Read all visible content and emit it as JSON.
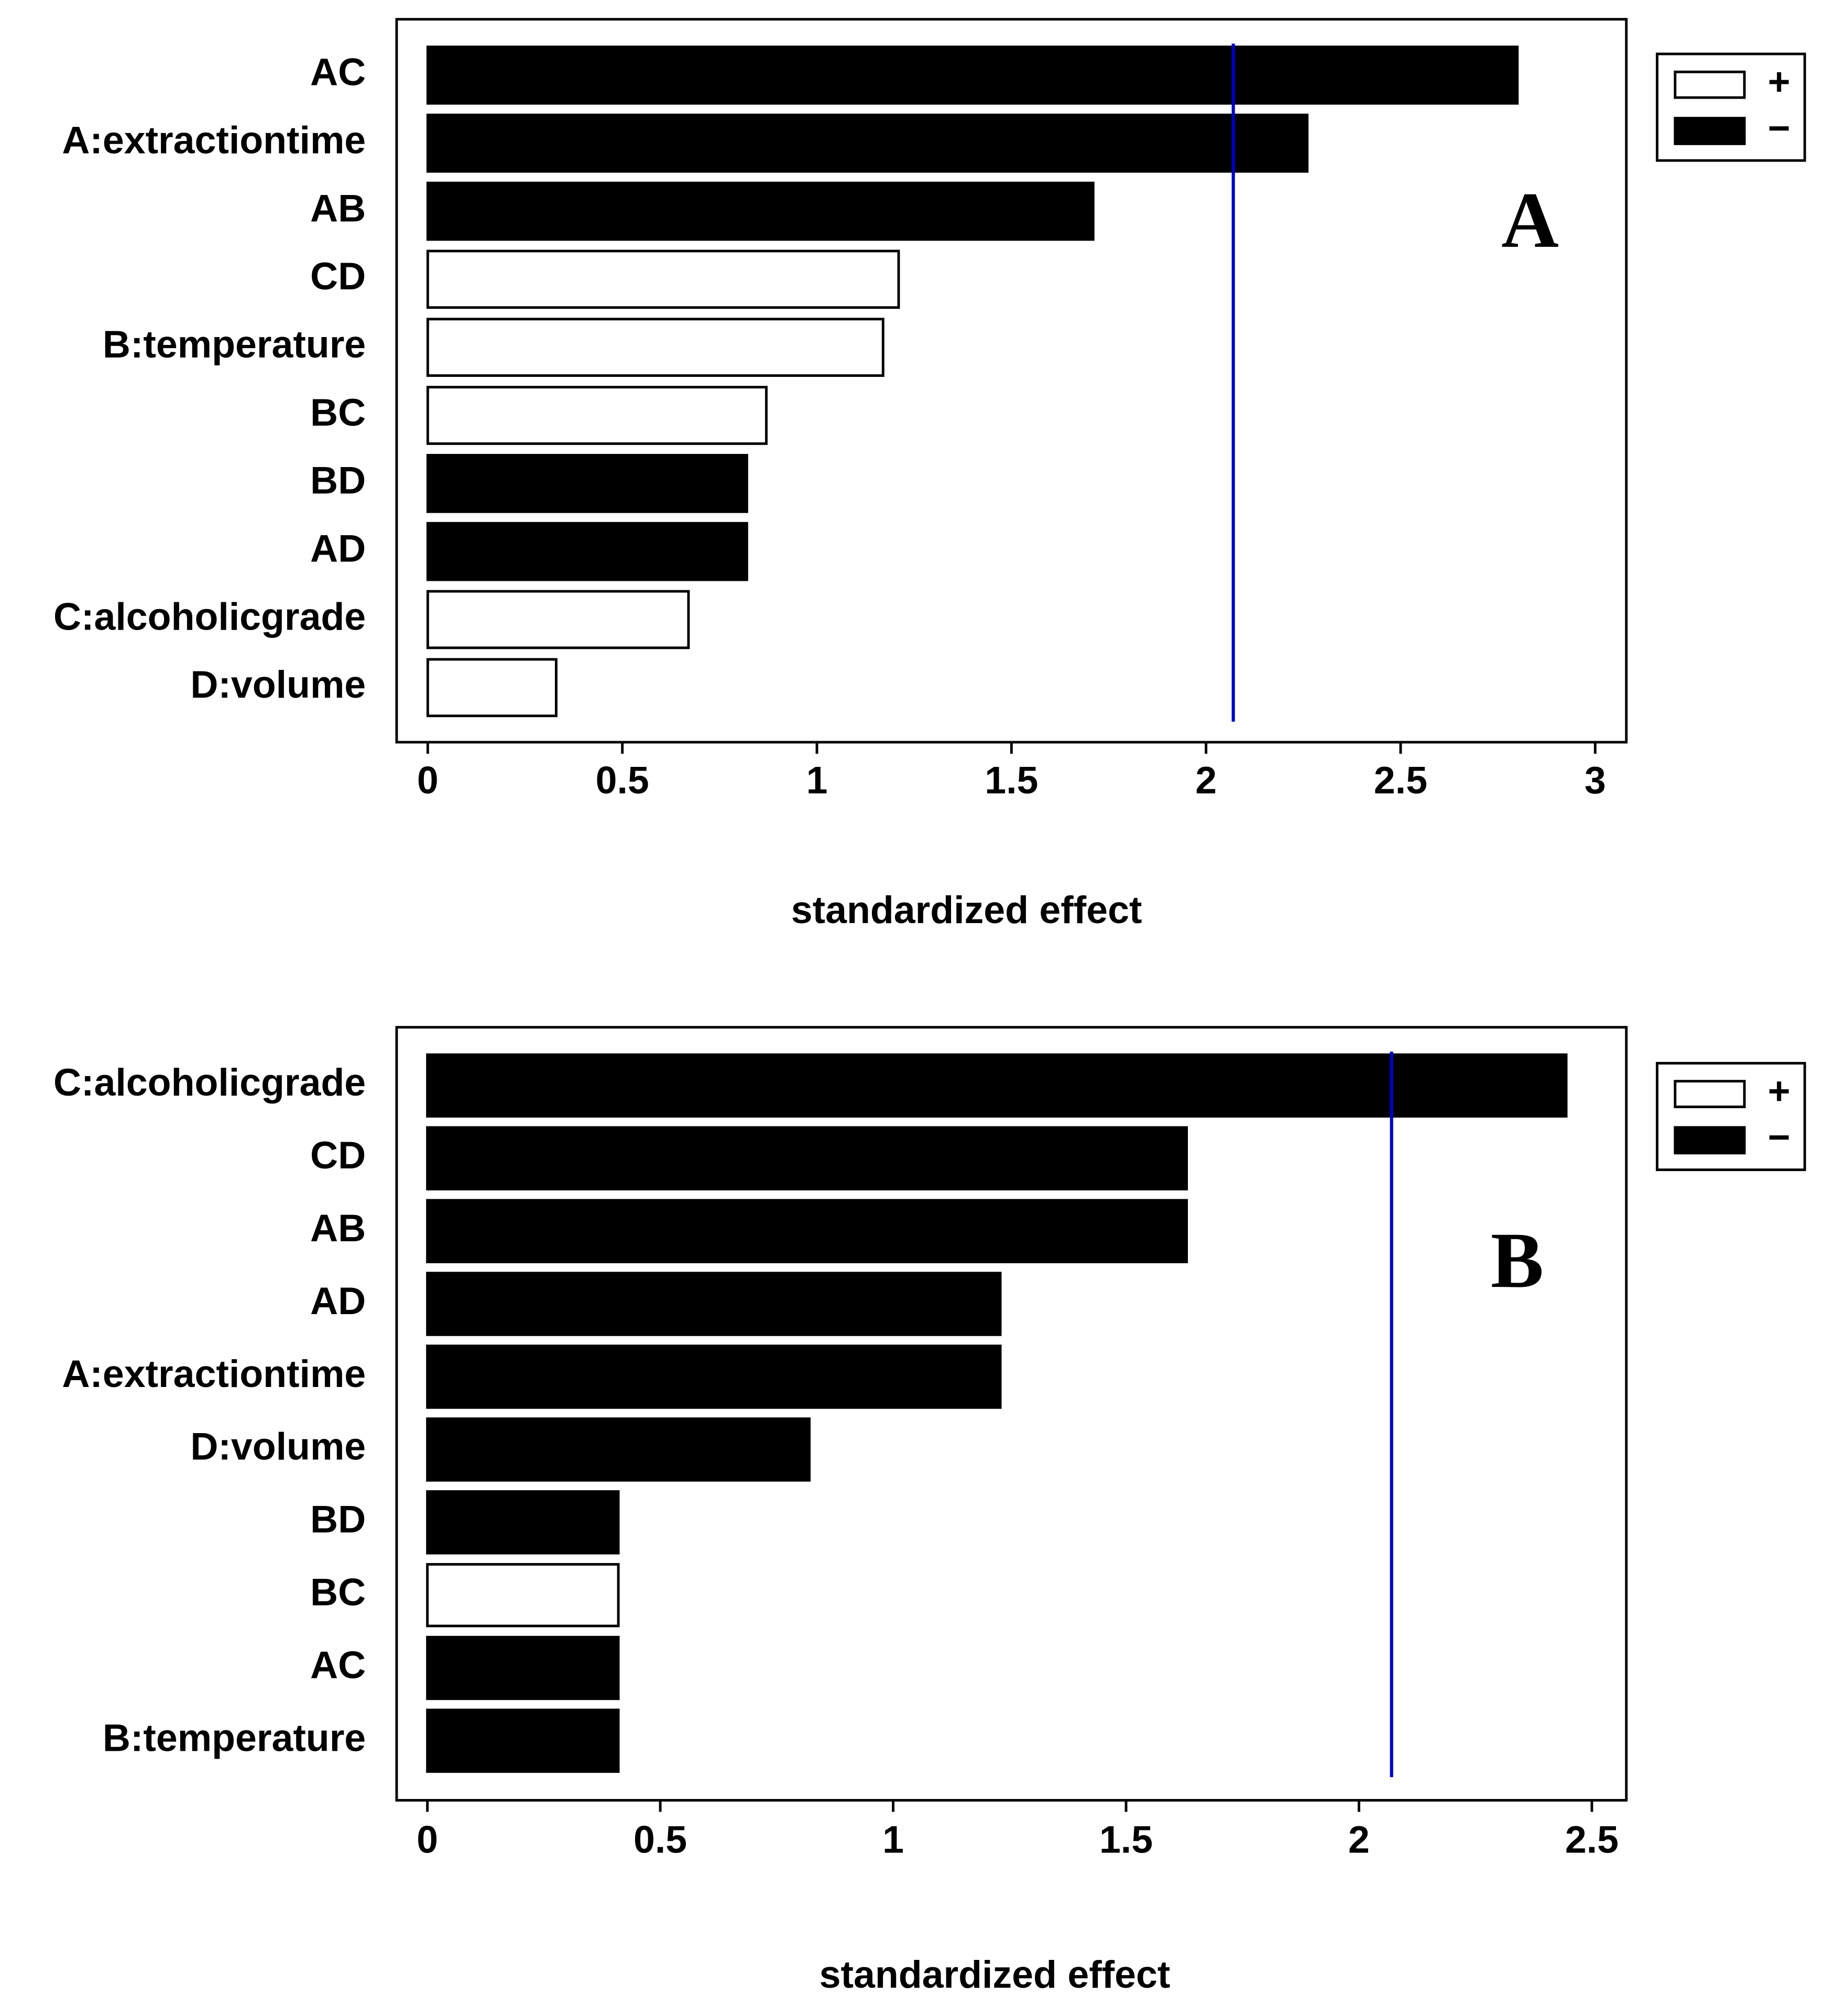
{
  "chart_data": [
    {
      "type": "bar",
      "orientation": "horizontal",
      "categories": [
        "AC",
        "A:extractiontime",
        "AB",
        "CD",
        "B:temperature",
        "BC",
        "BD",
        "AD",
        "C:alcoholicgrade",
        "D:volume"
      ],
      "series": [
        {
          "name": "+",
          "color": "#ffffff",
          "values": [
            null,
            null,
            null,
            1.21,
            1.17,
            0.87,
            null,
            null,
            0.67,
            0.33
          ]
        },
        {
          "name": "−",
          "color": "#000000",
          "values": [
            2.8,
            2.26,
            1.71,
            null,
            null,
            null,
            0.82,
            0.82,
            null,
            null
          ]
        }
      ],
      "reference_line": {
        "value": 2.07,
        "color": "#0000cc"
      },
      "annotation": "A",
      "xlabel": "standardized effect",
      "xlim": [
        -0.08,
        3.08
      ],
      "xticks": [
        0,
        0.5,
        1,
        1.5,
        2,
        2.5,
        3
      ],
      "legend": "upper right outside"
    },
    {
      "type": "bar",
      "orientation": "horizontal",
      "categories": [
        "C:alcoholicgrade",
        "CD",
        "AB",
        "AD",
        "A:extractiontime",
        "D:volume",
        "BD",
        "BC",
        "AC",
        "B:temperature"
      ],
      "series": [
        {
          "name": "+",
          "color": "#ffffff",
          "values": [
            null,
            null,
            null,
            null,
            null,
            null,
            null,
            0.41,
            null,
            null
          ]
        },
        {
          "name": "−",
          "color": "#000000",
          "values": [
            2.445,
            1.63,
            1.63,
            1.23,
            1.23,
            0.82,
            0.41,
            null,
            0.41,
            0.41
          ]
        }
      ],
      "reference_line": {
        "value": 2.07,
        "color": "#0000cc"
      },
      "annotation": "B",
      "xlabel": "standardized effect",
      "xlim": [
        -0.066,
        2.574
      ],
      "xticks": [
        0,
        0.5,
        1,
        1.5,
        2,
        2.5
      ],
      "legend": "upper right outside"
    }
  ]
}
